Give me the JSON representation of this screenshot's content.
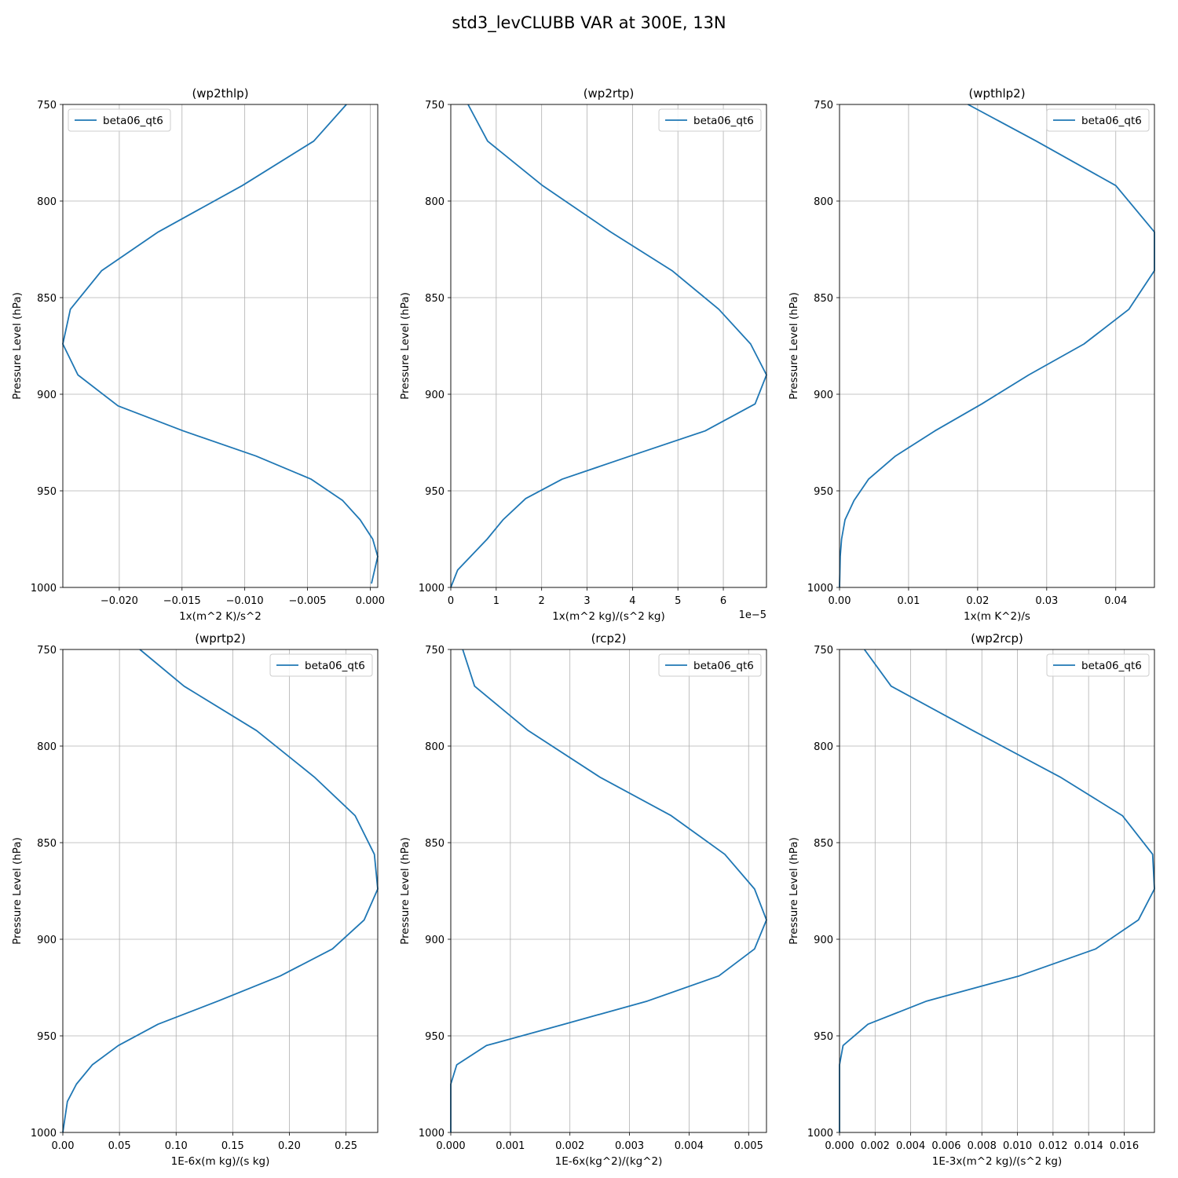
{
  "figure_title": "std3_levCLUBB VAR at 300E, 13N",
  "series_color": "#1f77b4",
  "chart_data": [
    {
      "type": "line",
      "title": "(wp2thlp)",
      "xlabel": "1x(m^2 K)/s^2",
      "ylabel": "Pressure Level (hPa)",
      "legend": "top-left",
      "grid": true,
      "xlim": [
        -0.0245,
        0.0006
      ],
      "ylim": [
        1000,
        750
      ],
      "xticks": [
        -0.02,
        -0.015,
        -0.01,
        -0.005,
        0.0
      ],
      "xtick_labels": [
        "−0.020",
        "−0.015",
        "−0.010",
        "−0.005",
        "0.000"
      ],
      "x_offset_text": "",
      "yticks": [
        750,
        800,
        850,
        900,
        950,
        1000
      ],
      "series": [
        {
          "name": "beta06_qt6",
          "x": [
            -0.0019,
            -0.0045,
            -0.0102,
            -0.0169,
            -0.0214,
            -0.0239,
            -0.0245,
            -0.0233,
            -0.0201,
            -0.0149,
            -0.0091,
            -0.0047,
            -0.0022,
            -0.0008,
            0.0002,
            0.0006,
            0.0001
          ],
          "y": [
            750,
            769,
            792,
            816,
            836,
            856,
            874,
            890,
            906,
            919,
            932,
            944,
            955,
            965,
            975,
            984,
            998
          ]
        }
      ]
    },
    {
      "type": "line",
      "title": "(wp2rtp)",
      "xlabel": "1x(m^2 kg)/(s^2 kg)",
      "ylabel": "Pressure Level (hPa)",
      "legend": "top-right",
      "grid": true,
      "xlim": [
        0,
        6.95e-05
      ],
      "ylim": [
        1000,
        750
      ],
      "xticks": [
        0,
        1e-05,
        2e-05,
        3e-05,
        4e-05,
        5e-05,
        6e-05
      ],
      "xtick_labels": [
        "0",
        "1",
        "2",
        "3",
        "4",
        "5",
        "6"
      ],
      "x_offset_text": "1e−5",
      "yticks": [
        750,
        800,
        850,
        900,
        950,
        1000
      ],
      "series": [
        {
          "name": "beta06_qt6",
          "x": [
            3.8e-06,
            8.1e-06,
            2.02e-05,
            3.52e-05,
            4.87e-05,
            5.9e-05,
            6.6e-05,
            6.95e-05,
            6.7e-05,
            5.6e-05,
            3.95e-05,
            2.45e-05,
            1.65e-05,
            1.15e-05,
            8e-06,
            1.5e-06,
            0.0
          ],
          "y": [
            750,
            769,
            792,
            816,
            836,
            856,
            874,
            890,
            905,
            919,
            932,
            944,
            954,
            965,
            975,
            991,
            1000
          ]
        }
      ]
    },
    {
      "type": "line",
      "title": "(wpthlp2)",
      "xlabel": "1x(m K^2)/s",
      "ylabel": "Pressure Level (hPa)",
      "legend": "top-right",
      "grid": true,
      "xlim": [
        0,
        0.0456
      ],
      "ylim": [
        1000,
        750
      ],
      "xticks": [
        0.0,
        0.01,
        0.02,
        0.03,
        0.04
      ],
      "xtick_labels": [
        "0.00",
        "0.01",
        "0.02",
        "0.03",
        "0.04"
      ],
      "x_offset_text": "",
      "yticks": [
        750,
        800,
        850,
        900,
        950,
        1000
      ],
      "series": [
        {
          "name": "beta06_qt6",
          "x": [
            0.0186,
            0.0285,
            0.04,
            0.0456,
            0.0456,
            0.0419,
            0.0354,
            0.0274,
            0.0206,
            0.0138,
            0.0081,
            0.0042,
            0.0021,
            0.0008,
            0.0003,
            0.0001,
            0.0
          ],
          "y": [
            750,
            769,
            792,
            816,
            836,
            856,
            874,
            890,
            905,
            919,
            932,
            944,
            955,
            965,
            975,
            984,
            1000
          ]
        }
      ]
    },
    {
      "type": "line",
      "title": "(wprtp2)",
      "xlabel": "1E-6x(m kg)/(s kg)",
      "ylabel": "Pressure Level (hPa)",
      "legend": "top-right",
      "grid": true,
      "xlim": [
        0,
        0.278
      ],
      "ylim": [
        1000,
        750
      ],
      "xticks": [
        0.0,
        0.05,
        0.1,
        0.15,
        0.2,
        0.25
      ],
      "xtick_labels": [
        "0.00",
        "0.05",
        "0.10",
        "0.15",
        "0.20",
        "0.25"
      ],
      "x_offset_text": "",
      "yticks": [
        750,
        800,
        850,
        900,
        950,
        1000
      ],
      "series": [
        {
          "name": "beta06_qt6",
          "x": [
            0.068,
            0.107,
            0.171,
            0.222,
            0.258,
            0.275,
            0.278,
            0.266,
            0.238,
            0.192,
            0.137,
            0.084,
            0.049,
            0.026,
            0.012,
            0.004,
            0.0
          ],
          "y": [
            750,
            769,
            792,
            816,
            836,
            856,
            874,
            890,
            905,
            919,
            932,
            944,
            955,
            965,
            975,
            984,
            1000
          ]
        }
      ]
    },
    {
      "type": "line",
      "title": "(rcp2)",
      "xlabel": "1E-6x(kg^2)/(kg^2)",
      "ylabel": "Pressure Level (hPa)",
      "legend": "top-right",
      "grid": true,
      "xlim": [
        0,
        0.0053
      ],
      "ylim": [
        1000,
        750
      ],
      "xticks": [
        0.0,
        0.001,
        0.002,
        0.003,
        0.004,
        0.005
      ],
      "xtick_labels": [
        "0.000",
        "0.001",
        "0.002",
        "0.003",
        "0.004",
        "0.005"
      ],
      "x_offset_text": "",
      "yticks": [
        750,
        800,
        850,
        900,
        950,
        1000
      ],
      "series": [
        {
          "name": "beta06_qt6",
          "x": [
            0.0002,
            0.0004,
            0.0013,
            0.0025,
            0.0037,
            0.0046,
            0.0051,
            0.0053,
            0.0051,
            0.0045,
            0.0033,
            0.0019,
            0.0006,
            0.0001,
            0.0,
            0.0,
            0.0
          ],
          "y": [
            750,
            769,
            792,
            816,
            836,
            856,
            874,
            890,
            905,
            919,
            932,
            944,
            955,
            965,
            975,
            984,
            1000
          ]
        }
      ]
    },
    {
      "type": "line",
      "title": "(wp2rcp)",
      "xlabel": "1E-3x(m^2 kg)/(s^2 kg)",
      "ylabel": "Pressure Level (hPa)",
      "legend": "top-right",
      "grid": true,
      "xlim": [
        0,
        0.0177
      ],
      "ylim": [
        1000,
        750
      ],
      "xticks": [
        0.0,
        0.002,
        0.004,
        0.006,
        0.008,
        0.01,
        0.012,
        0.014,
        0.016
      ],
      "xtick_labels": [
        "0.000",
        "0.002",
        "0.004",
        "0.006",
        "0.008",
        "0.010",
        "0.012",
        "0.014",
        "0.016"
      ],
      "x_offset_text": "",
      "yticks": [
        750,
        800,
        850,
        900,
        950,
        1000
      ],
      "series": [
        {
          "name": "beta06_qt6",
          "x": [
            0.0014,
            0.0029,
            0.0075,
            0.0124,
            0.0159,
            0.0176,
            0.0177,
            0.0168,
            0.0144,
            0.0101,
            0.0049,
            0.0016,
            0.0002,
            0.0,
            0.0,
            0.0,
            0.0
          ],
          "y": [
            750,
            769,
            792,
            816,
            836,
            856,
            874,
            890,
            905,
            919,
            932,
            944,
            955,
            965,
            975,
            984,
            1000
          ]
        }
      ]
    }
  ]
}
